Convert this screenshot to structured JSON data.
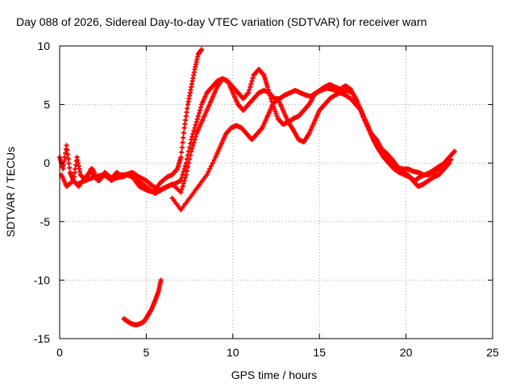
{
  "chart_data": {
    "type": "scatter",
    "title": "Day 088 of 2026, Sidereal Day-to-day VTEC variation (SDTVAR) for receiver warn",
    "xlabel": "GPS time / hours",
    "ylabel": "SDTVAR / TECUs",
    "xlim": [
      0,
      25
    ],
    "ylim": [
      -15,
      10
    ],
    "xticks": [
      0,
      5,
      10,
      15,
      20,
      25
    ],
    "yticks": [
      -15,
      -10,
      -5,
      0,
      5,
      10
    ],
    "grid": true,
    "legend": "none",
    "marker": "+",
    "color": "#ff0000",
    "series": [
      {
        "name": "track-1",
        "x": [
          0.0,
          0.2,
          0.4,
          0.6,
          0.8,
          1.0,
          1.2,
          1.5,
          1.8,
          2.0,
          2.3,
          2.6,
          3.0,
          3.3,
          3.6,
          3.9,
          4.2,
          4.6,
          5.0,
          5.4,
          5.8,
          6.2,
          6.5,
          6.8,
          7.0,
          7.2,
          7.4,
          7.6,
          7.8,
          8.0,
          8.2
        ],
        "y": [
          0.5,
          -0.5,
          1.5,
          -0.8,
          -1.5,
          0.5,
          -1.0,
          -1.5,
          -0.5,
          -1.2,
          -1.5,
          -0.8,
          -1.3,
          -0.8,
          -1.2,
          -1.0,
          -1.2,
          -2.0,
          -2.3,
          -2.5,
          -1.7,
          -1.2,
          -1.0,
          -0.5,
          0.5,
          3.0,
          5.0,
          6.5,
          8.0,
          9.3,
          9.7
        ]
      },
      {
        "name": "track-2",
        "x": [
          0.1,
          0.4,
          0.8,
          1.1,
          1.5,
          1.9,
          2.2,
          2.6,
          3.0,
          3.4,
          3.8,
          4.2,
          4.6,
          5.0,
          5.4,
          5.8,
          6.2,
          6.6,
          7.0,
          7.3,
          7.6,
          7.9,
          8.2,
          8.5,
          8.8,
          9.1,
          9.4,
          9.7,
          10.0,
          10.3,
          10.6,
          10.9,
          11.2,
          11.5,
          11.8,
          12.0,
          12.3,
          12.6,
          12.9,
          13.2,
          13.5,
          13.8,
          14.1,
          14.4,
          14.7,
          15.0,
          15.3,
          15.6,
          15.9,
          16.2,
          16.5,
          16.8,
          17.1,
          17.4,
          17.7,
          18.0,
          18.3,
          18.6,
          18.9,
          19.2,
          19.5,
          19.8,
          20.1,
          20.4,
          20.7,
          21.0,
          21.3,
          21.6,
          21.9,
          22.2,
          22.5,
          22.8
        ],
        "y": [
          -1.0,
          -2.0,
          -1.5,
          -2.0,
          -1.2,
          -0.5,
          -1.5,
          -1.0,
          -1.5,
          -1.0,
          -1.0,
          -0.8,
          -1.2,
          -1.5,
          -2.0,
          -2.3,
          -2.0,
          -1.8,
          -1.5,
          0.0,
          2.0,
          3.5,
          5.0,
          6.0,
          6.5,
          7.0,
          7.2,
          7.0,
          6.5,
          6.0,
          5.5,
          6.0,
          7.5,
          8.0,
          7.5,
          6.5,
          5.0,
          3.8,
          3.3,
          3.5,
          3.8,
          4.0,
          4.5,
          5.0,
          5.8,
          6.2,
          6.5,
          6.7,
          6.5,
          6.3,
          6.6,
          6.3,
          5.5,
          4.5,
          3.5,
          2.5,
          1.5,
          0.8,
          0.3,
          -0.2,
          -0.4,
          -0.5,
          -0.5,
          -0.7,
          -0.8,
          -1.0,
          -1.0,
          -0.8,
          -0.5,
          0.0,
          0.5,
          1.0
        ]
      },
      {
        "name": "track-3",
        "x": [
          1.0,
          1.5,
          2.0,
          2.5,
          3.0,
          3.5,
          4.0,
          4.5,
          5.0,
          5.5,
          6.0,
          6.5,
          7.0,
          7.3,
          7.6,
          7.9,
          8.2,
          8.5,
          8.8,
          9.1,
          9.4,
          9.7,
          10.0,
          10.3,
          10.6,
          10.9,
          11.2,
          11.5,
          11.8,
          12.1,
          12.4,
          12.7,
          13.0,
          13.3,
          13.6,
          13.9,
          14.2,
          14.5,
          14.8,
          15.1,
          15.4,
          15.7,
          16.0,
          16.3,
          16.6,
          16.9,
          17.2,
          17.5,
          17.8,
          18.1,
          18.4,
          18.7,
          19.0,
          19.3,
          19.6,
          19.9,
          20.2,
          20.5,
          20.8,
          21.1,
          21.4,
          21.7,
          22.0,
          22.3,
          22.6
        ],
        "y": [
          -1.8,
          -1.5,
          -1.2,
          -1.0,
          -1.4,
          -1.2,
          -1.0,
          -1.5,
          -2.0,
          -2.6,
          -2.2,
          -1.8,
          -2.5,
          -1.0,
          1.0,
          2.5,
          3.5,
          4.5,
          5.5,
          6.5,
          7.2,
          7.0,
          6.0,
          5.0,
          4.5,
          5.0,
          5.5,
          6.0,
          6.2,
          6.0,
          5.5,
          5.5,
          5.8,
          6.0,
          6.2,
          6.0,
          5.8,
          5.7,
          6.0,
          6.2,
          6.4,
          6.3,
          6.2,
          6.0,
          6.2,
          6.0,
          5.2,
          4.0,
          3.0,
          2.0,
          1.2,
          0.5,
          0.0,
          -0.5,
          -0.8,
          -1.0,
          -1.2,
          -1.5,
          -1.2,
          -1.0,
          -0.8,
          -0.5,
          -0.2,
          0.0,
          0.3
        ]
      },
      {
        "name": "track-4",
        "x": [
          6.5,
          7.0,
          7.5,
          8.0,
          8.5,
          9.0,
          9.3,
          9.6,
          9.9,
          10.2,
          10.5,
          10.8,
          11.1,
          11.4,
          11.7,
          12.0,
          12.3,
          12.6,
          12.9,
          13.2,
          13.5,
          13.8,
          14.1,
          14.4,
          14.7,
          15.0,
          15.3,
          15.6,
          15.9,
          16.2,
          16.5,
          16.8,
          17.1,
          17.4,
          17.7,
          18.0,
          18.3,
          18.6,
          18.9,
          19.2,
          19.5,
          19.8,
          20.1,
          20.4,
          20.7,
          21.0,
          21.3,
          21.6,
          21.9,
          22.2,
          22.5
        ],
        "y": [
          -3.0,
          -4.0,
          -3.0,
          -2.0,
          -1.0,
          0.5,
          1.5,
          2.5,
          3.0,
          3.2,
          3.0,
          2.5,
          2.0,
          2.5,
          3.0,
          4.0,
          5.0,
          5.5,
          4.5,
          3.5,
          2.8,
          2.0,
          1.8,
          2.5,
          3.5,
          4.5,
          5.0,
          5.5,
          5.8,
          6.0,
          5.8,
          5.5,
          5.0,
          4.5,
          3.5,
          2.5,
          2.0,
          1.2,
          0.8,
          0.3,
          -0.3,
          -0.8,
          -1.0,
          -1.5,
          -2.0,
          -1.8,
          -1.5,
          -1.2,
          -1.0,
          -0.5,
          0.0
        ]
      },
      {
        "name": "track-5",
        "x": [
          3.7,
          3.9,
          4.1,
          4.3,
          4.5,
          4.7,
          4.9,
          5.1,
          5.3,
          5.5,
          5.7,
          5.85
        ],
        "y": [
          -13.3,
          -13.5,
          -13.7,
          -13.8,
          -13.8,
          -13.7,
          -13.5,
          -13.0,
          -12.5,
          -11.8,
          -11.0,
          -10.0
        ]
      }
    ]
  }
}
